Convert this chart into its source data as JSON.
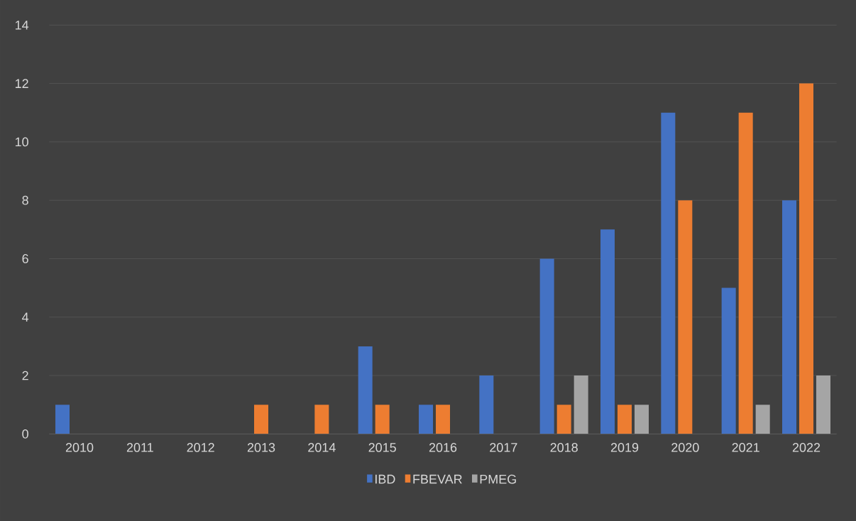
{
  "chart_data": {
    "type": "bar",
    "categories": [
      "2010",
      "2011",
      "2012",
      "2013",
      "2014",
      "2015",
      "2016",
      "2017",
      "2018",
      "2019",
      "2020",
      "2021",
      "2022"
    ],
    "series": [
      {
        "name": "IBD",
        "color": "#4472c4",
        "values": [
          1,
          0,
          0,
          0,
          0,
          3,
          1,
          2,
          6,
          7,
          11,
          5,
          8
        ]
      },
      {
        "name": "FBEVAR",
        "color": "#ed7d31",
        "values": [
          0,
          0,
          0,
          1,
          1,
          1,
          1,
          0,
          1,
          1,
          8,
          11,
          12
        ]
      },
      {
        "name": "PMEG",
        "color": "#a5a5a5",
        "values": [
          0,
          0,
          0,
          0,
          0,
          0,
          0,
          0,
          2,
          1,
          0,
          1,
          2
        ]
      }
    ],
    "ylim": [
      0,
      14
    ],
    "yticks": [
      0,
      2,
      4,
      6,
      8,
      10,
      12,
      14
    ],
    "grid": "y",
    "legend": "bottom"
  }
}
